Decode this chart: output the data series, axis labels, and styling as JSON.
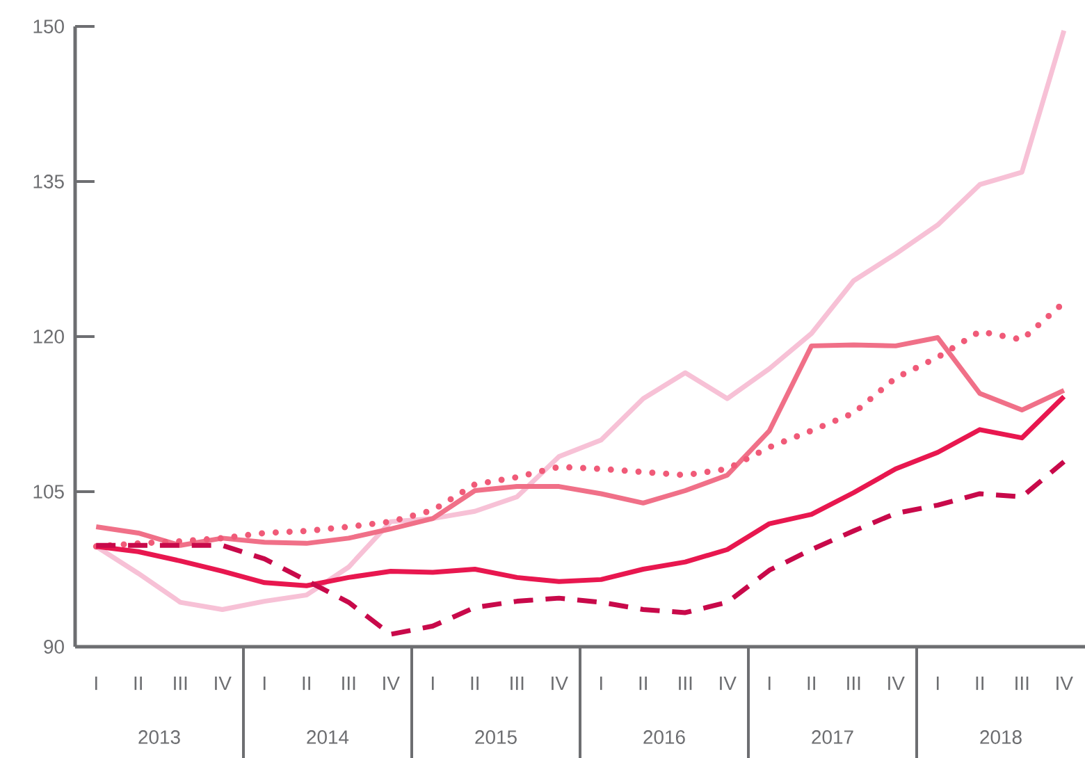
{
  "chart_data": {
    "type": "line",
    "categories": [
      "I",
      "II",
      "III",
      "IV",
      "I",
      "II",
      "III",
      "IV",
      "I",
      "II",
      "III",
      "IV",
      "I",
      "II",
      "III",
      "IV",
      "I",
      "II",
      "III",
      "IV",
      "I",
      "II",
      "III",
      "IV"
    ],
    "annotations": [
      "2013",
      "2014",
      "2015",
      "2016",
      "2017",
      "2018"
    ],
    "ylim": [
      90,
      150
    ],
    "yticks": [
      90,
      105,
      120,
      135,
      150
    ],
    "grid": false,
    "series": [
      {
        "color": "#f7c1d6",
        "line_style": "solid",
        "values": [
          99.7,
          97.1,
          94.3,
          93.6,
          94.4,
          95.0,
          97.7,
          102.1,
          102.4,
          103.1,
          104.5,
          108.4,
          110.0,
          114.0,
          116.5,
          114.0,
          116.9,
          120.3,
          125.4,
          128.0,
          130.8,
          134.7,
          135.9,
          149.6
        ]
      },
      {
        "color": "#f07088",
        "line_style": "solid",
        "values": [
          101.6,
          101.0,
          99.8,
          100.5,
          100.1,
          100.0,
          100.5,
          101.4,
          102.4,
          105.1,
          105.5,
          105.5,
          104.8,
          103.9,
          105.1,
          106.6,
          110.9,
          119.1,
          119.2,
          119.1,
          119.9,
          114.5,
          112.9,
          114.8
        ]
      },
      {
        "color": "#f05a78",
        "line_style": "dotted",
        "values": [
          99.7,
          100.0,
          100.2,
          100.5,
          101.0,
          101.2,
          101.6,
          102.1,
          103.2,
          105.7,
          106.4,
          107.4,
          107.2,
          106.9,
          106.6,
          107.2,
          109.3,
          110.9,
          112.6,
          116.0,
          118.0,
          120.5,
          119.7,
          123.3
        ]
      },
      {
        "color": "#e8174f",
        "line_style": "solid",
        "values": [
          99.7,
          99.2,
          98.3,
          97.3,
          96.2,
          95.9,
          96.7,
          97.3,
          97.2,
          97.5,
          96.7,
          96.3,
          96.5,
          97.5,
          98.2,
          99.4,
          101.9,
          102.8,
          104.9,
          107.2,
          108.8,
          111.0,
          110.2,
          114.2
        ]
      },
      {
        "color": "#c8094a",
        "line_style": "dashed",
        "values": [
          99.8,
          99.8,
          99.8,
          99.8,
          98.5,
          96.4,
          94.3,
          91.2,
          92.0,
          93.8,
          94.4,
          94.7,
          94.3,
          93.6,
          93.3,
          94.3,
          97.4,
          99.4,
          101.2,
          102.9,
          103.7,
          104.8,
          104.5,
          107.9
        ]
      }
    ]
  }
}
